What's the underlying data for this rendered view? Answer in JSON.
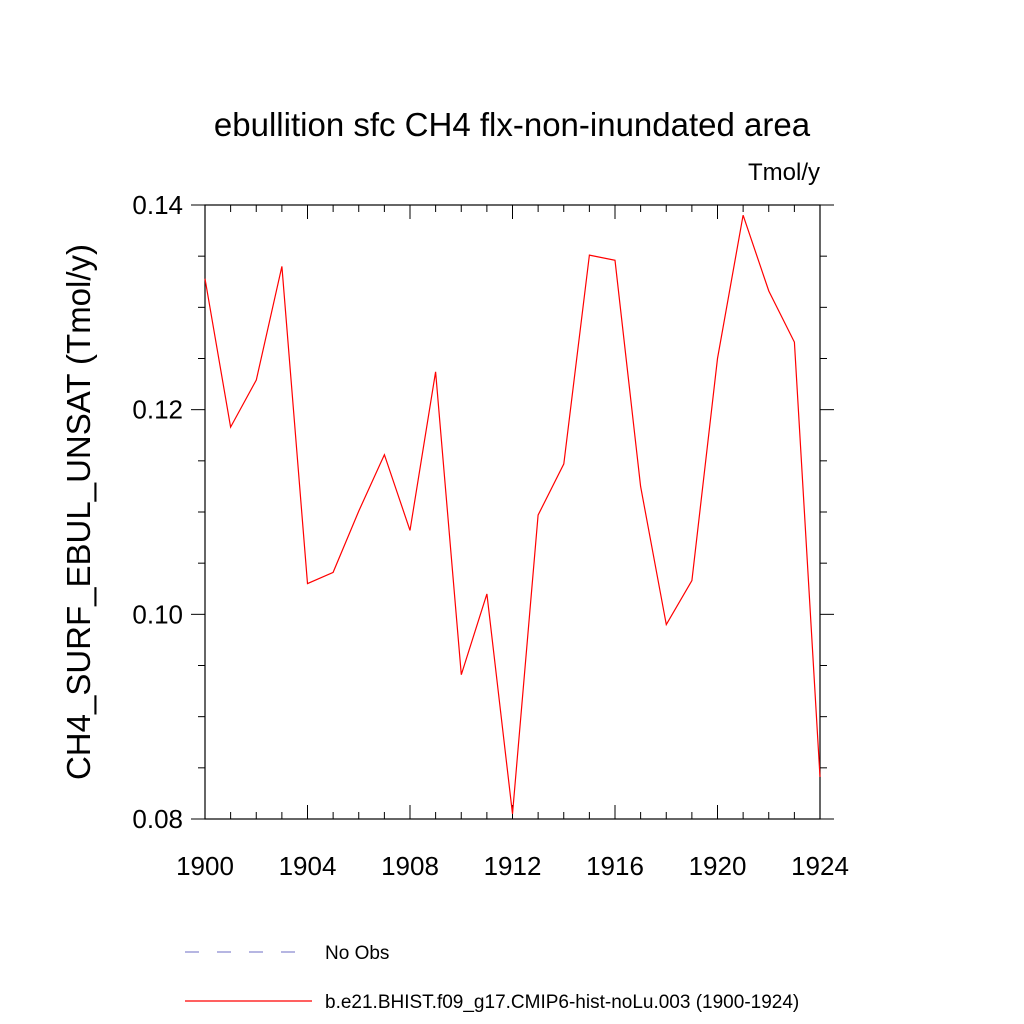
{
  "chart_data": {
    "type": "line",
    "title": "ebullition sfc CH4 flx-non-inundated area",
    "units_label": "Tmol/y",
    "xlabel": "",
    "ylabel": "CH4_SURF_EBUL_UNSAT  (Tmol/y)",
    "xlim": [
      1900,
      1924
    ],
    "ylim": [
      0.08,
      0.14
    ],
    "x_ticks": [
      1900,
      1904,
      1908,
      1912,
      1916,
      1920,
      1924
    ],
    "y_ticks": [
      "0.08",
      "0.10",
      "0.12",
      "0.14"
    ],
    "grid": false,
    "legend_placement": "bottom",
    "series": [
      {
        "name": "b.e21.BHIST.f09_g17.CMIP6-hist-noLu.003 (1900-1924)",
        "color": "#ff0000",
        "style": "solid",
        "x": [
          1900,
          1901,
          1902,
          1903,
          1904,
          1905,
          1906,
          1907,
          1908,
          1909,
          1910,
          1911,
          1912,
          1913,
          1914,
          1915,
          1916,
          1917,
          1918,
          1919,
          1920,
          1921,
          1922,
          1923,
          1924
        ],
        "values": [
          0.1328,
          0.1183,
          0.1229,
          0.134,
          0.103,
          0.1041,
          0.1101,
          0.1156,
          0.1082,
          0.1237,
          0.0941,
          0.102,
          0.0805,
          0.1097,
          0.1147,
          0.1351,
          0.1346,
          0.1125,
          0.099,
          0.1033,
          0.125,
          0.139,
          0.1316,
          0.1266,
          0.0841
        ]
      }
    ],
    "legend": [
      {
        "label": "No Obs",
        "color": "#8a8ad0",
        "style": "dashed"
      },
      {
        "label": "b.e21.BHIST.f09_g17.CMIP6-hist-noLu.003 (1900-1924)",
        "color": "#ff0000",
        "style": "solid"
      }
    ]
  }
}
